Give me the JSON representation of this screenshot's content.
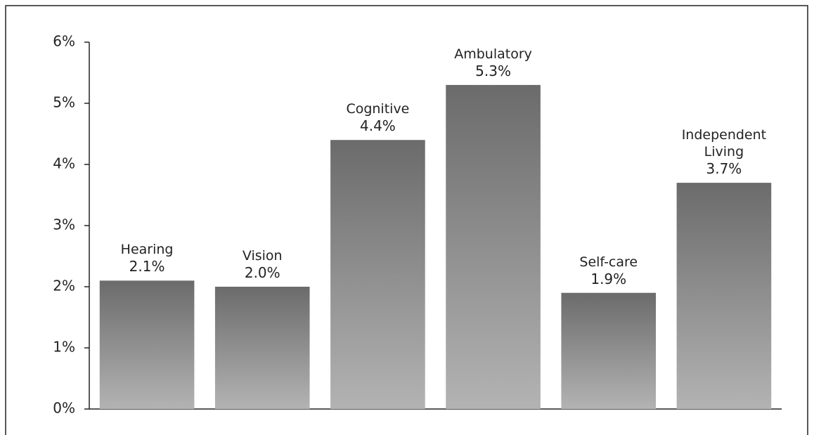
{
  "chart_data": {
    "type": "bar",
    "categories": [
      "Hearing",
      "Vision",
      "Cognitive",
      "Ambulatory",
      "Self-care",
      "Independent Living"
    ],
    "values": [
      2.1,
      2.0,
      4.4,
      5.3,
      1.9,
      3.7
    ],
    "value_labels": [
      "2.1%",
      "2.0%",
      "4.4%",
      "5.3%",
      "1.9%",
      "3.7%"
    ],
    "color": "#6b6b6b",
    "ylim": [
      0,
      6
    ],
    "yticks": [
      {
        "value": 0,
        "label": "0%"
      },
      {
        "value": 1,
        "label": "1%"
      },
      {
        "value": 2,
        "label": "2%"
      },
      {
        "value": 3,
        "label": "3%"
      },
      {
        "value": 4,
        "label": "4%"
      },
      {
        "value": 5,
        "label": "5%"
      },
      {
        "value": 6,
        "label": "6%"
      }
    ],
    "grid": false
  }
}
